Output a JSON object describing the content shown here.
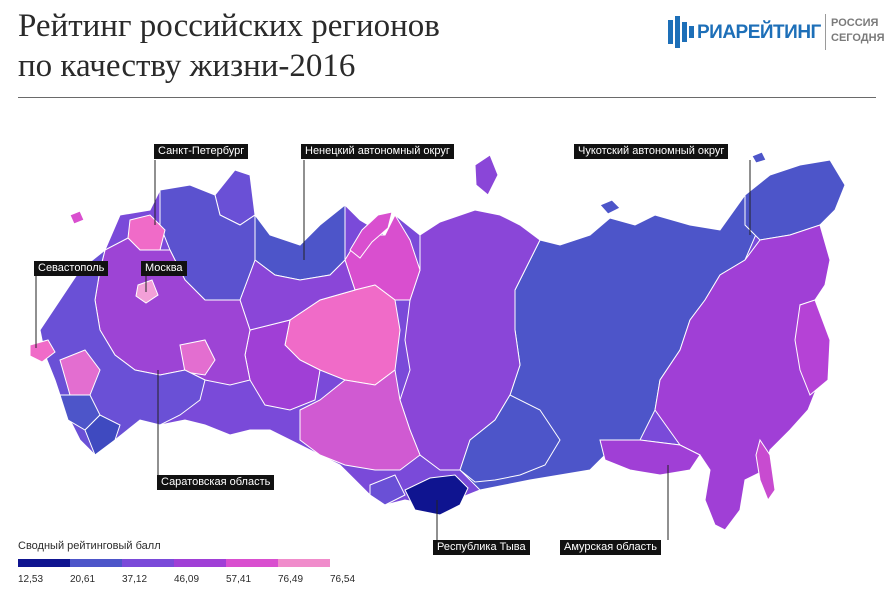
{
  "title": {
    "line1": "Рейтинг российских регионов",
    "line2": "по качеству жизни-2016"
  },
  "logo": {
    "name": "РИАРЕЙТИНГ",
    "sub_line1": "РОССИЯ",
    "sub_line2": "СЕГОДНЯ",
    "color": "#1d6fb8"
  },
  "callouts": {
    "spb": "Санкт-Петербург",
    "nenets": "Ненецкий автономный округ",
    "chukotka": "Чукотский автономный округ",
    "sevastopol": "Севастополь",
    "moscow": "Москва",
    "saratov": "Саратовская область",
    "tyva": "Республика Тыва",
    "amur": "Амурская область"
  },
  "legend": {
    "title": "Сводный рейтинговый балл",
    "breaks": [
      "12,53",
      "20,61",
      "37,12",
      "46,09",
      "57,41",
      "76,49",
      "76,54"
    ],
    "colors": [
      "#0f1490",
      "#4d55c9",
      "#7a4ad9",
      "#a03fd6",
      "#d94fcf",
      "#f08ccb"
    ]
  }
}
